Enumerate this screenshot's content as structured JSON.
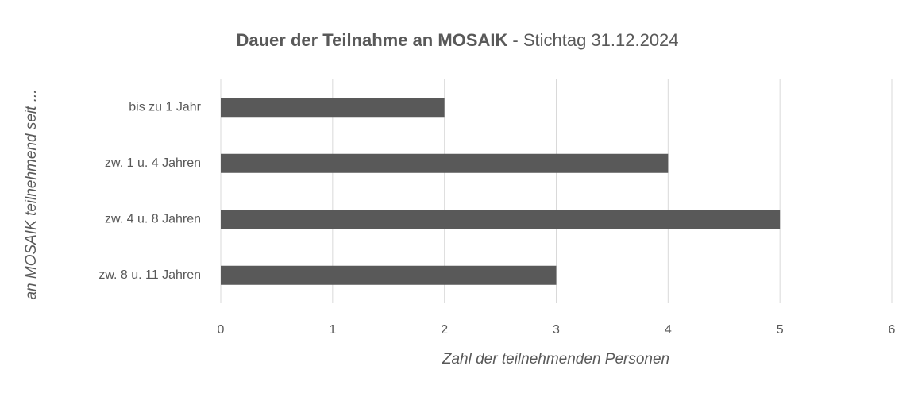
{
  "chart_data": {
    "type": "barh",
    "title": "Dauer der Teilnahme an MOSAIK",
    "subtitle": "- Stichtag 31.12.2024",
    "x_label": "Zahl der teilnehmenden Personen",
    "y_label": "an MOSAIK teilnehmend seit ...",
    "categories": [
      "bis zu 1 Jahr",
      "zw. 1 u. 4 Jahren",
      "zw. 4 u. 8 Jahren",
      "zw. 8 u. 11 Jahren"
    ],
    "values": [
      2,
      4,
      5,
      3
    ],
    "color": "#595959",
    "xlim": [
      0,
      6
    ],
    "xticks": [
      0,
      1,
      2,
      3,
      4,
      5,
      6
    ],
    "grid": true
  }
}
